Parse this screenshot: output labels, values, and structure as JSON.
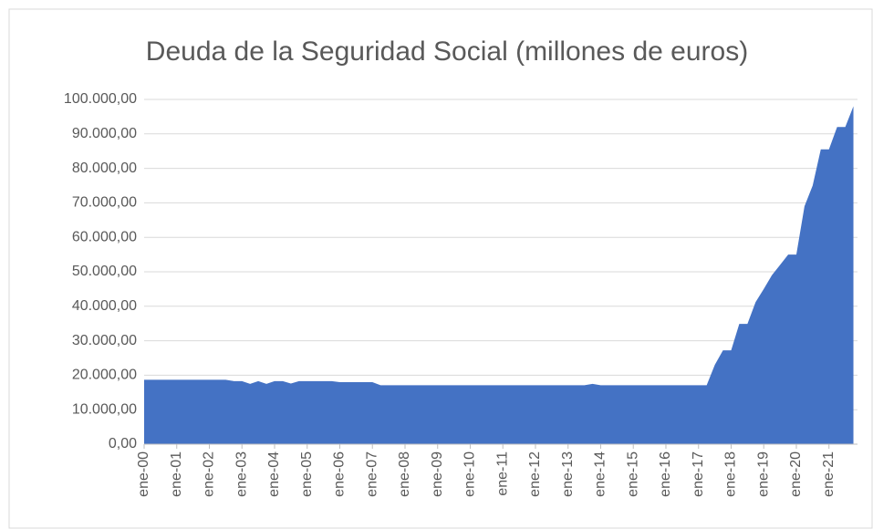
{
  "chart_data": {
    "type": "area",
    "title": "Deuda de la Seguridad Social (millones de euros)",
    "categories": [
      "ene-00",
      null,
      null,
      null,
      "ene-01",
      null,
      null,
      null,
      "ene-02",
      null,
      null,
      null,
      "ene-03",
      null,
      null,
      null,
      "ene-04",
      null,
      null,
      null,
      "ene-05",
      null,
      null,
      null,
      "ene-06",
      null,
      null,
      null,
      "ene-07",
      null,
      null,
      null,
      "ene-08",
      null,
      null,
      null,
      "ene-09",
      null,
      null,
      null,
      "ene-10",
      null,
      null,
      null,
      "ene-11",
      null,
      null,
      null,
      "ene-12",
      null,
      null,
      null,
      "ene-13",
      null,
      null,
      null,
      "ene-14",
      null,
      null,
      null,
      "ene-15",
      null,
      null,
      null,
      "ene-16",
      null,
      null,
      null,
      "ene-17",
      null,
      null,
      null,
      "ene-18",
      null,
      null,
      null,
      "ene-19",
      null,
      null,
      null,
      "ene-20",
      null,
      null,
      null,
      "ene-21",
      null,
      null,
      null
    ],
    "values": [
      18700,
      18700,
      18700,
      18700,
      18700,
      18700,
      18700,
      18700,
      18700,
      18700,
      18700,
      18300,
      18300,
      17500,
      18300,
      17500,
      18300,
      18300,
      17600,
      18300,
      18300,
      18300,
      18300,
      18300,
      18000,
      18000,
      18000,
      18000,
      18000,
      17100,
      17100,
      17100,
      17100,
      17100,
      17100,
      17100,
      17100,
      17100,
      17100,
      17100,
      17100,
      17100,
      17100,
      17100,
      17100,
      17100,
      17100,
      17100,
      17100,
      17100,
      17100,
      17100,
      17100,
      17100,
      17100,
      17500,
      17100,
      17100,
      17100,
      17100,
      17100,
      17100,
      17100,
      17100,
      17100,
      17100,
      17100,
      17100,
      17100,
      17100,
      23000,
      27200,
      27200,
      34900,
      34900,
      41200,
      45000,
      49000,
      52000,
      55000,
      55000,
      69000,
      75000,
      85500,
      85500,
      92000,
      92000,
      98000
    ],
    "color": "#4472c4",
    "ylim": [
      0,
      100000
    ],
    "yticks": [
      {
        "value": 0,
        "label": "0,00"
      },
      {
        "value": 10000,
        "label": "10.000,00"
      },
      {
        "value": 20000,
        "label": "20.000,00"
      },
      {
        "value": 30000,
        "label": "30.000,00"
      },
      {
        "value": 40000,
        "label": "40.000,00"
      },
      {
        "value": 50000,
        "label": "50.000,00"
      },
      {
        "value": 60000,
        "label": "60.000,00"
      },
      {
        "value": 70000,
        "label": "70.000,00"
      },
      {
        "value": 80000,
        "label": "80.000,00"
      },
      {
        "value": 90000,
        "label": "90.000,00"
      },
      {
        "value": 100000,
        "label": "100.000,00"
      }
    ],
    "grid": true
  }
}
